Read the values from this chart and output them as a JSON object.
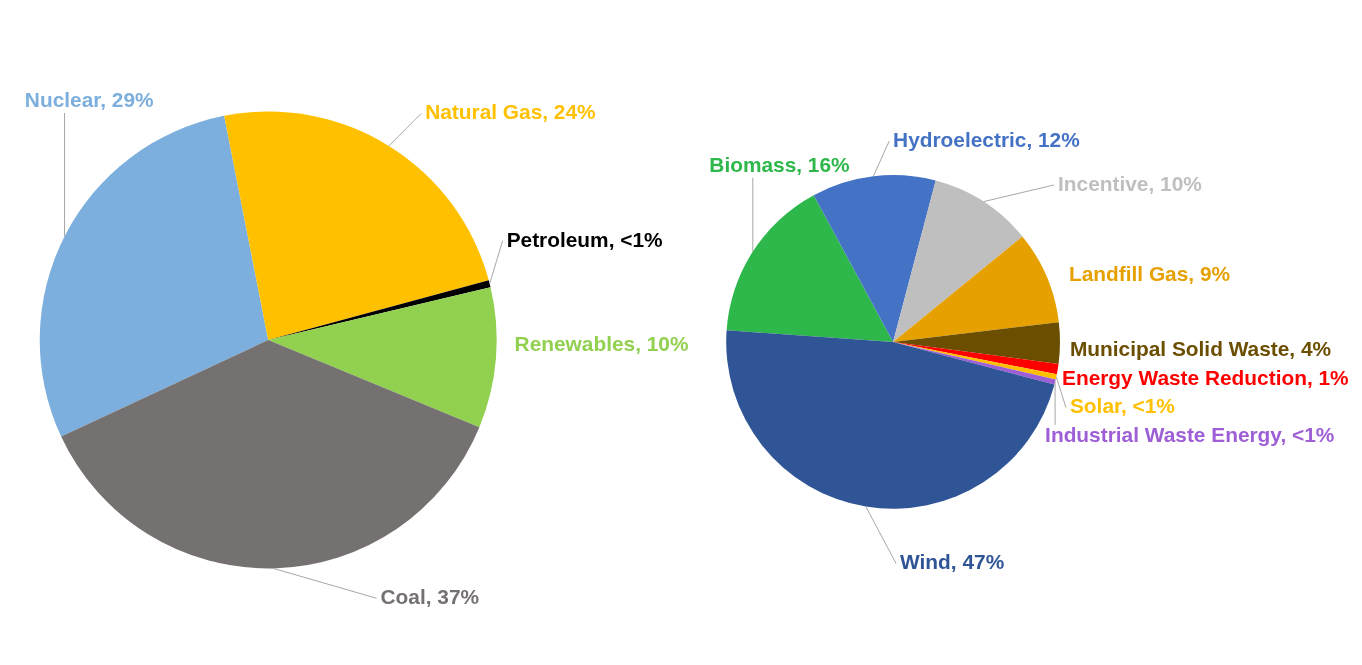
{
  "chart_data": [
    {
      "type": "pie",
      "categories": [
        "Nuclear",
        "Natural Gas",
        "Petroleum",
        "Renewables",
        "Coal"
      ],
      "values": [
        29,
        24,
        0.5,
        10,
        37
      ],
      "value_labels": [
        "29%",
        "24%",
        "<1%",
        "10%",
        "37%"
      ],
      "colors": [
        "#7cafdd",
        "#ffc000",
        "#000000",
        "#92d050",
        "#767171"
      ]
    },
    {
      "type": "pie",
      "categories": [
        "Biomass",
        "Hydroelectric",
        "Incentive",
        "Landfill Gas",
        "Municipal Solid Waste",
        "Energy Waste Reduction",
        "Solar",
        "Industrial Waste Energy",
        "Wind"
      ],
      "values": [
        16,
        12,
        10,
        9,
        4,
        1,
        0.5,
        0.5,
        47
      ],
      "value_labels": [
        "16%",
        "12%",
        "10%",
        "9%",
        "4%",
        "1%",
        "<1%",
        "<1%",
        "47%"
      ],
      "colors": [
        "#2eb84b",
        "#4472c4",
        "#bfbfbf",
        "#e6a000",
        "#6b4e00",
        "#ff0000",
        "#ffc000",
        "#9e5fd6",
        "#2f5597"
      ]
    }
  ]
}
